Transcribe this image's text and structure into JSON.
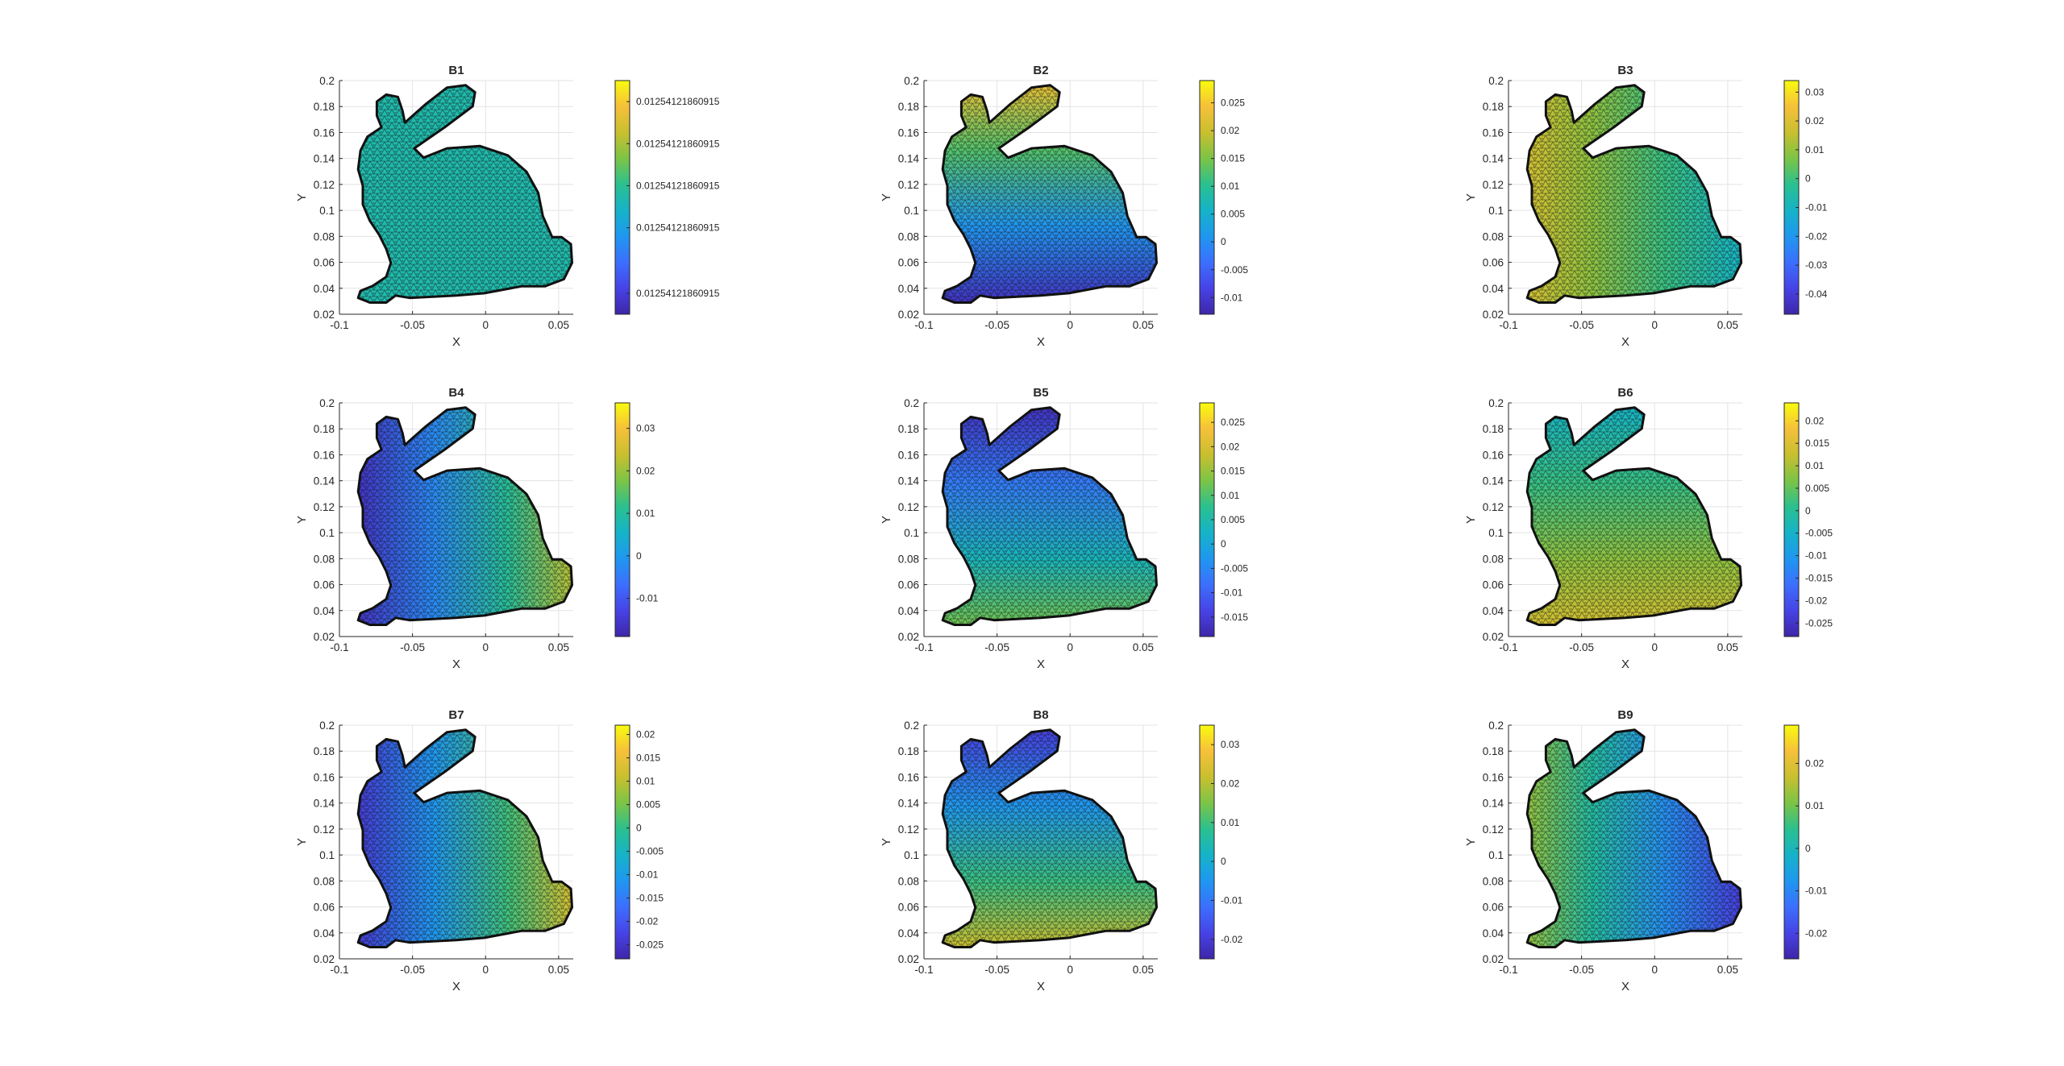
{
  "figure": {
    "colormap": [
      "#3e26a8",
      "#4743e6",
      "#3c6ffd",
      "#1f97f0",
      "#15b3c8",
      "#2bc08f",
      "#7bc446",
      "#c9bf2f",
      "#f6c03a",
      "#f9fb0e"
    ],
    "axis_color": "#262626",
    "grid_color": "#e3e3e3",
    "mesh_color": "#111111"
  },
  "chart_data": [
    {
      "type": "heatmap",
      "title": "B1",
      "xlabel": "X",
      "ylabel": "Y",
      "xlim": [
        -0.1,
        0.06
      ],
      "ylim": [
        0.02,
        0.2
      ],
      "xticks": [
        "-0.1",
        "-0.05",
        "0",
        "0.05"
      ],
      "yticks": [
        "0.02",
        "0.04",
        "0.06",
        "0.08",
        "0.1",
        "0.12",
        "0.14",
        "0.16",
        "0.18",
        "0.2"
      ],
      "grid": true,
      "color_gradient": {
        "dir": "uniform",
        "c0": 0.5,
        "c1": 0.5
      },
      "colorbar": {
        "min": 0,
        "max": 1,
        "ticks": [
          {
            "v": 0.91,
            "label": "0.0125412186091​5"
          },
          {
            "v": 0.73,
            "label": "0.01254121860915"
          },
          {
            "v": 0.55,
            "label": "0.01254121860915"
          },
          {
            "v": 0.37,
            "label": "0.01254121860915"
          },
          {
            "v": 0.09,
            "label": "0.01254121860915"
          }
        ]
      }
    },
    {
      "type": "heatmap",
      "title": "B2",
      "xlabel": "X",
      "ylabel": "Y",
      "xlim": [
        -0.1,
        0.06
      ],
      "ylim": [
        0.02,
        0.2
      ],
      "xticks": [
        "-0.1",
        "-0.05",
        "0",
        "0.05"
      ],
      "yticks": [
        "0.02",
        "0.04",
        "0.06",
        "0.08",
        "0.1",
        "0.12",
        "0.14",
        "0.16",
        "0.18",
        "0.2"
      ],
      "grid": true,
      "color_gradient": {
        "dir": "top-high",
        "c0": 0.05,
        "c1": 0.85
      },
      "colorbar": {
        "min": -0.013,
        "max": 0.029,
        "ticks": [
          {
            "v": 0.025,
            "label": "0.025"
          },
          {
            "v": 0.02,
            "label": "0.02"
          },
          {
            "v": 0.015,
            "label": "0.015"
          },
          {
            "v": 0.01,
            "label": "0.01"
          },
          {
            "v": 0.005,
            "label": "0.005"
          },
          {
            "v": 0,
            "label": "0"
          },
          {
            "v": -0.005,
            "label": "-0.005"
          },
          {
            "v": -0.01,
            "label": "-0.01"
          }
        ]
      }
    },
    {
      "type": "heatmap",
      "title": "B3",
      "xlabel": "X",
      "ylabel": "Y",
      "xlim": [
        -0.1,
        0.06
      ],
      "ylim": [
        0.02,
        0.2
      ],
      "xticks": [
        "-0.1",
        "-0.05",
        "0",
        "0.05"
      ],
      "yticks": [
        "0.02",
        "0.04",
        "0.06",
        "0.08",
        "0.1",
        "0.12",
        "0.14",
        "0.16",
        "0.18",
        "0.2"
      ],
      "grid": true,
      "color_gradient": {
        "dir": "left-high",
        "c0": 0.45,
        "c1": 0.8
      },
      "colorbar": {
        "min": -0.047,
        "max": 0.034,
        "ticks": [
          {
            "v": 0.03,
            "label": "0.03"
          },
          {
            "v": 0.02,
            "label": "0.02"
          },
          {
            "v": 0.01,
            "label": "0.01"
          },
          {
            "v": 0,
            "label": "0"
          },
          {
            "v": -0.01,
            "label": "-0.01"
          },
          {
            "v": -0.02,
            "label": "-0.02"
          },
          {
            "v": -0.03,
            "label": "-0.03"
          },
          {
            "v": -0.04,
            "label": "-0.04"
          }
        ]
      }
    },
    {
      "type": "heatmap",
      "title": "B4",
      "xlabel": "X",
      "ylabel": "Y",
      "xlim": [
        -0.1,
        0.06
      ],
      "ylim": [
        0.02,
        0.2
      ],
      "xticks": [
        "-0.1",
        "-0.05",
        "0",
        "0.05"
      ],
      "yticks": [
        "0.02",
        "0.04",
        "0.06",
        "0.08",
        "0.1",
        "0.12",
        "0.14",
        "0.16",
        "0.18",
        "0.2"
      ],
      "grid": true,
      "color_gradient": {
        "dir": "right-high",
        "c0": 0.05,
        "c1": 0.75
      },
      "colorbar": {
        "min": -0.019,
        "max": 0.036,
        "ticks": [
          {
            "v": 0.03,
            "label": "0.03"
          },
          {
            "v": 0.02,
            "label": "0.02"
          },
          {
            "v": 0.01,
            "label": "0.01"
          },
          {
            "v": 0,
            "label": "0"
          },
          {
            "v": -0.01,
            "label": "-0.01"
          }
        ]
      }
    },
    {
      "type": "heatmap",
      "title": "B5",
      "xlabel": "X",
      "ylabel": "Y",
      "xlim": [
        -0.1,
        0.06
      ],
      "ylim": [
        0.02,
        0.2
      ],
      "xticks": [
        "-0.1",
        "-0.05",
        "0",
        "0.05"
      ],
      "yticks": [
        "0.02",
        "0.04",
        "0.06",
        "0.08",
        "0.1",
        "0.12",
        "0.14",
        "0.16",
        "0.18",
        "0.2"
      ],
      "grid": true,
      "color_gradient": {
        "dir": "bottom-high",
        "c0": 0.05,
        "c1": 0.65
      },
      "colorbar": {
        "min": -0.019,
        "max": 0.029,
        "ticks": [
          {
            "v": 0.025,
            "label": "0.025"
          },
          {
            "v": 0.02,
            "label": "0.02"
          },
          {
            "v": 0.015,
            "label": "0.015"
          },
          {
            "v": 0.01,
            "label": "0.01"
          },
          {
            "v": 0.005,
            "label": "0.005"
          },
          {
            "v": 0,
            "label": "0"
          },
          {
            "v": -0.005,
            "label": "-0.005"
          },
          {
            "v": -0.01,
            "label": "-0.01"
          },
          {
            "v": -0.015,
            "label": "-0.015"
          }
        ]
      }
    },
    {
      "type": "heatmap",
      "title": "B6",
      "xlabel": "X",
      "ylabel": "Y",
      "xlim": [
        -0.1,
        0.06
      ],
      "ylim": [
        0.02,
        0.2
      ],
      "xticks": [
        "-0.1",
        "-0.05",
        "0",
        "0.05"
      ],
      "yticks": [
        "0.02",
        "0.04",
        "0.06",
        "0.08",
        "0.1",
        "0.12",
        "0.14",
        "0.16",
        "0.18",
        "0.2"
      ],
      "grid": true,
      "color_gradient": {
        "dir": "bottom-high",
        "c0": 0.45,
        "c1": 0.8
      },
      "colorbar": {
        "min": -0.028,
        "max": 0.024,
        "ticks": [
          {
            "v": 0.02,
            "label": "0.02"
          },
          {
            "v": 0.015,
            "label": "0.015"
          },
          {
            "v": 0.01,
            "label": "0.01"
          },
          {
            "v": 0.005,
            "label": "0.005"
          },
          {
            "v": 0,
            "label": "0"
          },
          {
            "v": -0.005,
            "label": "-0.005"
          },
          {
            "v": -0.01,
            "label": "-0.01"
          },
          {
            "v": -0.015,
            "label": "-0.015"
          },
          {
            "v": -0.02,
            "label": "-0.02"
          },
          {
            "v": -0.025,
            "label": "-0.025"
          }
        ]
      }
    },
    {
      "type": "heatmap",
      "title": "B7",
      "xlabel": "X",
      "ylabel": "Y",
      "xlim": [
        -0.1,
        0.06
      ],
      "ylim": [
        0.02,
        0.2
      ],
      "xticks": [
        "-0.1",
        "-0.05",
        "0",
        "0.05"
      ],
      "yticks": [
        "0.02",
        "0.04",
        "0.06",
        "0.08",
        "0.1",
        "0.12",
        "0.14",
        "0.16",
        "0.18",
        "0.2"
      ],
      "grid": true,
      "color_gradient": {
        "dir": "right-high",
        "c0": 0.08,
        "c1": 0.8
      },
      "colorbar": {
        "min": -0.028,
        "max": 0.022,
        "ticks": [
          {
            "v": 0.02,
            "label": "0.02"
          },
          {
            "v": 0.015,
            "label": "0.015"
          },
          {
            "v": 0.01,
            "label": "0.01"
          },
          {
            "v": 0.005,
            "label": "0.005"
          },
          {
            "v": 0,
            "label": "0"
          },
          {
            "v": -0.005,
            "label": "-0.005"
          },
          {
            "v": -0.01,
            "label": "-0.01"
          },
          {
            "v": -0.015,
            "label": "-0.015"
          },
          {
            "v": -0.02,
            "label": "-0.02"
          },
          {
            "v": -0.025,
            "label": "-0.025"
          }
        ]
      }
    },
    {
      "type": "heatmap",
      "title": "B8",
      "xlabel": "X",
      "ylabel": "Y",
      "xlim": [
        -0.1,
        0.06
      ],
      "ylim": [
        0.02,
        0.2
      ],
      "xticks": [
        "-0.1",
        "-0.05",
        "0",
        "0.05"
      ],
      "yticks": [
        "0.02",
        "0.04",
        "0.06",
        "0.08",
        "0.1",
        "0.12",
        "0.14",
        "0.16",
        "0.18",
        "0.2"
      ],
      "grid": true,
      "color_gradient": {
        "dir": "bottom-high",
        "c0": 0.1,
        "c1": 0.78
      },
      "colorbar": {
        "min": -0.025,
        "max": 0.035,
        "ticks": [
          {
            "v": 0.03,
            "label": "0.03"
          },
          {
            "v": 0.02,
            "label": "0.02"
          },
          {
            "v": 0.01,
            "label": "0.01"
          },
          {
            "v": 0,
            "label": "0"
          },
          {
            "v": -0.01,
            "label": "-0.01"
          },
          {
            "v": -0.02,
            "label": "-0.02"
          }
        ]
      }
    },
    {
      "type": "heatmap",
      "title": "B9",
      "xlabel": "X",
      "ylabel": "Y",
      "xlim": [
        -0.1,
        0.06
      ],
      "ylim": [
        0.02,
        0.2
      ],
      "xticks": [
        "-0.1",
        "-0.05",
        "0",
        "0.05"
      ],
      "yticks": [
        "0.02",
        "0.04",
        "0.06",
        "0.08",
        "0.1",
        "0.12",
        "0.14",
        "0.16",
        "0.18",
        "0.2"
      ],
      "grid": true,
      "color_gradient": {
        "dir": "left-high",
        "c0": 0.1,
        "c1": 0.7
      },
      "colorbar": {
        "min": -0.026,
        "max": 0.029,
        "ticks": [
          {
            "v": 0.02,
            "label": "0.02"
          },
          {
            "v": 0.01,
            "label": "0.01"
          },
          {
            "v": 0,
            "label": "0"
          },
          {
            "v": -0.01,
            "label": "-0.01"
          },
          {
            "v": -0.02,
            "label": "-0.02"
          }
        ]
      }
    }
  ]
}
